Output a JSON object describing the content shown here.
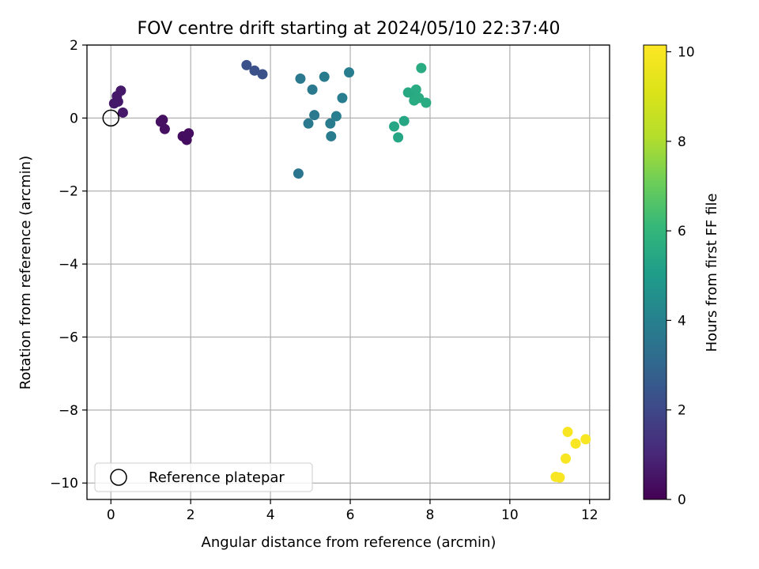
{
  "chart_data": {
    "type": "scatter",
    "title": "FOV centre drift starting at 2024/05/10 22:37:40",
    "xlabel": "Angular distance from reference (arcmin)",
    "ylabel": "Rotation from reference (arcmin)",
    "xlim": [
      -0.6,
      12.5
    ],
    "ylim": [
      -10.45,
      2.0
    ],
    "xticks": [
      0,
      2,
      4,
      6,
      8,
      10,
      12
    ],
    "yticks": [
      2,
      0,
      -2,
      -4,
      -6,
      -8,
      -10
    ],
    "grid": true,
    "colormap": "viridis",
    "colorbar": {
      "label": "Hours from first FF file",
      "range": [
        0,
        10.15
      ],
      "ticks": [
        0,
        2,
        4,
        6,
        8,
        10
      ]
    },
    "legend": {
      "position": "lower-left",
      "entries": [
        "Reference platepar"
      ]
    },
    "reference_point": {
      "x": 0,
      "y": 0
    },
    "points": [
      {
        "x": 0.08,
        "y": 0.4,
        "h": 0.6
      },
      {
        "x": 0.15,
        "y": 0.6,
        "h": 0.6
      },
      {
        "x": 0.18,
        "y": 0.45,
        "h": 0.6
      },
      {
        "x": 0.25,
        "y": 0.75,
        "h": 0.6
      },
      {
        "x": 0.3,
        "y": 0.15,
        "h": 0.6
      },
      {
        "x": 1.25,
        "y": -0.1,
        "h": 0.4
      },
      {
        "x": 1.3,
        "y": -0.05,
        "h": 0.4
      },
      {
        "x": 1.35,
        "y": -0.3,
        "h": 0.4
      },
      {
        "x": 1.8,
        "y": -0.5,
        "h": 0.3
      },
      {
        "x": 1.9,
        "y": -0.6,
        "h": 0.3
      },
      {
        "x": 1.95,
        "y": -0.42,
        "h": 0.3
      },
      {
        "x": 3.4,
        "y": 1.45,
        "h": 2.3
      },
      {
        "x": 3.6,
        "y": 1.3,
        "h": 2.3
      },
      {
        "x": 3.8,
        "y": 1.2,
        "h": 2.3
      },
      {
        "x": 4.7,
        "y": -1.52,
        "h": 3.6
      },
      {
        "x": 4.75,
        "y": 1.08,
        "h": 3.7
      },
      {
        "x": 4.95,
        "y": -0.15,
        "h": 3.7
      },
      {
        "x": 5.05,
        "y": 0.78,
        "h": 3.7
      },
      {
        "x": 5.1,
        "y": 0.08,
        "h": 3.7
      },
      {
        "x": 5.35,
        "y": 1.13,
        "h": 3.8
      },
      {
        "x": 5.5,
        "y": -0.15,
        "h": 3.8
      },
      {
        "x": 5.52,
        "y": -0.5,
        "h": 3.8
      },
      {
        "x": 5.65,
        "y": 0.05,
        "h": 3.9
      },
      {
        "x": 5.8,
        "y": 0.55,
        "h": 3.9
      },
      {
        "x": 5.97,
        "y": 1.25,
        "h": 3.9
      },
      {
        "x": 7.1,
        "y": -0.23,
        "h": 5.4
      },
      {
        "x": 7.2,
        "y": -0.53,
        "h": 5.4
      },
      {
        "x": 7.35,
        "y": -0.08,
        "h": 5.4
      },
      {
        "x": 7.45,
        "y": 0.7,
        "h": 5.5
      },
      {
        "x": 7.55,
        "y": 0.68,
        "h": 5.5
      },
      {
        "x": 7.6,
        "y": 0.48,
        "h": 5.6
      },
      {
        "x": 7.65,
        "y": 0.78,
        "h": 5.6
      },
      {
        "x": 7.72,
        "y": 0.55,
        "h": 5.6
      },
      {
        "x": 7.78,
        "y": 1.37,
        "h": 5.6
      },
      {
        "x": 7.9,
        "y": 0.42,
        "h": 5.6
      },
      {
        "x": 11.15,
        "y": -9.83,
        "h": 10.0
      },
      {
        "x": 11.25,
        "y": -9.85,
        "h": 10.0
      },
      {
        "x": 11.4,
        "y": -9.33,
        "h": 10.0
      },
      {
        "x": 11.45,
        "y": -8.6,
        "h": 10.0
      },
      {
        "x": 11.65,
        "y": -8.92,
        "h": 10.0
      },
      {
        "x": 11.9,
        "y": -8.8,
        "h": 10.0
      }
    ]
  }
}
